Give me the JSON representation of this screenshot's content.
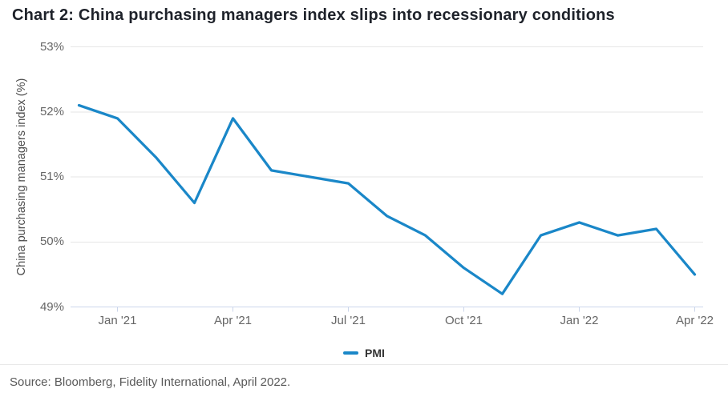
{
  "header": {
    "title": "Chart 2: China purchasing managers index slips into recessionary conditions"
  },
  "chart_data": {
    "type": "line",
    "x": [
      "Dec '20",
      "Jan '21",
      "Feb '21",
      "Mar '21",
      "Apr '21",
      "May '21",
      "Jun '21",
      "Jul '21",
      "Aug '21",
      "Sep '21",
      "Oct '21",
      "Nov '21",
      "Dec '21",
      "Jan '22",
      "Feb '22",
      "Mar '22",
      "Apr '22"
    ],
    "series": [
      {
        "name": "PMI",
        "color": "#1a87c8",
        "values": [
          52.1,
          51.9,
          51.3,
          50.6,
          51.9,
          51.1,
          51.0,
          50.9,
          50.4,
          50.1,
          49.6,
          49.2,
          50.1,
          50.3,
          50.1,
          50.2,
          49.5
        ]
      }
    ],
    "xlabel": "",
    "ylabel": "China purchasing managers index (%)",
    "ylim": [
      49,
      53
    ],
    "yticks": [
      49,
      50,
      51,
      52,
      53
    ],
    "ytick_format": "{v}%",
    "xticks": [
      "Jan '21",
      "Apr '21",
      "Jul '21",
      "Oct '21",
      "Jan '22",
      "Apr '22"
    ],
    "xtick_month_indices": [
      1,
      4,
      7,
      10,
      13,
      16
    ],
    "grid": true,
    "legend_position": "bottom-center"
  },
  "footer": {
    "source": "Source: Bloomberg, Fidelity International, April 2022."
  },
  "colors": {
    "line": "#1a87c8",
    "grid": "#e6e6e6",
    "axis": "#ccd6eb",
    "tick_label": "#666666",
    "axis_title": "#4d4d4d",
    "title_text": "#1e222a",
    "legend_text": "#333333",
    "source_text": "#595959",
    "divider": "#e8e8e8",
    "background": "#ffffff"
  }
}
